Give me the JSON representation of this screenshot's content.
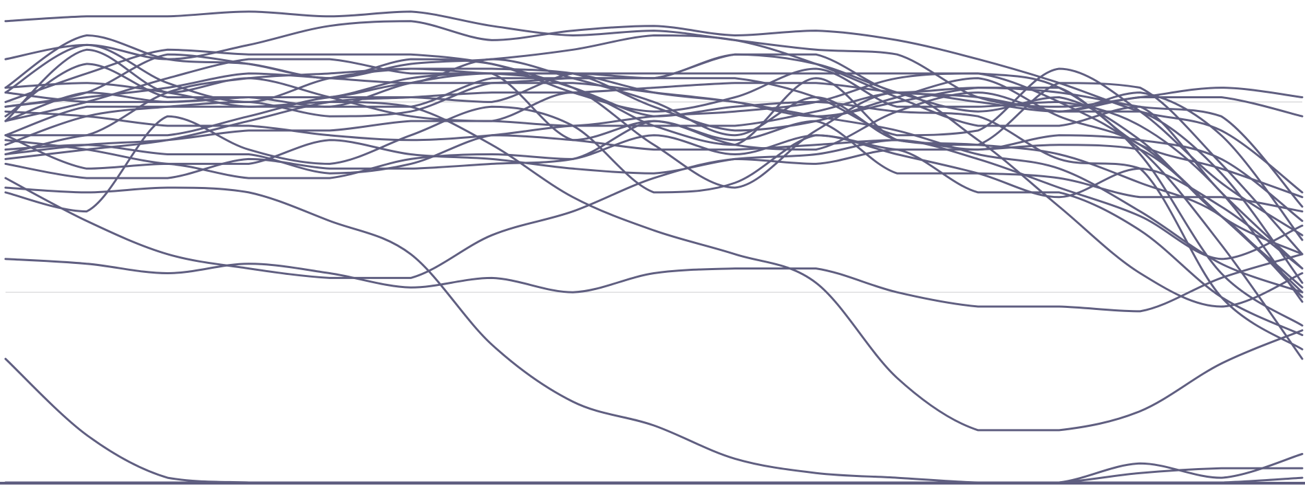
{
  "chart_data": {
    "type": "line",
    "title": "",
    "xlabel": "",
    "ylabel": "",
    "grid": true,
    "legend": "none",
    "xlim": [
      0,
      16
    ],
    "ylim": [
      0,
      100
    ],
    "gridlines_y": [
      40,
      80
    ],
    "colors": {
      "line": "#5f5e80",
      "grid": "#d4d4d6",
      "baseline": "#5f5e80",
      "background": "#ffffff"
    },
    "x": [
      0,
      1,
      2,
      3,
      4,
      5,
      6,
      7,
      8,
      9,
      10,
      11,
      12,
      13,
      14,
      15,
      16
    ],
    "series": [
      {
        "values": [
          73,
          66,
          67,
          64,
          64,
          68,
          69,
          68,
          76,
          72,
          76,
          65,
          65,
          64,
          60,
          60,
          57
        ]
      },
      {
        "values": [
          61,
          57,
          77,
          70,
          67,
          73,
          79,
          75,
          61,
          63,
          73,
          69,
          65,
          60,
          66,
          58,
          45
        ]
      },
      {
        "values": [
          77,
          88,
          81,
          81,
          79,
          84,
          86,
          72,
          76,
          71,
          70,
          78,
          82,
          78,
          82,
          73,
          51
        ]
      },
      {
        "values": [
          83,
          94,
          89,
          88,
          85,
          89,
          88,
          82,
          78,
          81,
          87,
          79,
          79,
          80,
          75,
          61,
          38
        ]
      },
      {
        "values": [
          73,
          73,
          82,
          85,
          86,
          87,
          86,
          86,
          86,
          86,
          86,
          86,
          86,
          83,
          69,
          44,
          33
        ]
      },
      {
        "values": [
          76,
          80,
          85,
          89,
          89,
          86,
          86,
          86,
          79,
          74,
          76,
          81,
          85,
          77,
          71,
          56,
          41
        ]
      },
      {
        "values": [
          76,
          82,
          80,
          81,
          81,
          85,
          86,
          83,
          71,
          62,
          74,
          82,
          72,
          58,
          44,
          37,
          44
        ]
      },
      {
        "values": [
          79,
          82,
          90,
          88,
          85,
          88,
          89,
          91,
          94,
          93,
          88,
          81,
          75,
          75,
          79,
          61,
          45
        ]
      },
      {
        "values": [
          82,
          80,
          80,
          81,
          81,
          84,
          84,
          85,
          85,
          85,
          81,
          73,
          74,
          87,
          78,
          63,
          52
        ]
      },
      {
        "values": [
          67,
          64,
          64,
          68,
          66,
          66,
          67,
          68,
          73,
          69,
          73,
          70,
          70,
          71,
          70,
          56,
          40
        ]
      },
      {
        "values": [
          71,
          77,
          79,
          80,
          77,
          78,
          84,
          84,
          82,
          80,
          77,
          80,
          83,
          83,
          71,
          66,
          60
        ]
      },
      {
        "values": [
          70,
          71,
          69,
          69,
          65,
          67,
          73,
          72,
          70,
          70,
          71,
          72,
          70,
          73,
          72,
          68,
          55
        ]
      },
      {
        "values": [
          76,
          91,
          82,
          85,
          81,
          77,
          76,
          82,
          75,
          71,
          85,
          72,
          71,
          84,
          83,
          67,
          48
        ]
      },
      {
        "values": [
          62,
          61,
          62,
          61,
          55,
          48,
          29,
          17,
          12,
          5,
          2,
          1,
          0,
          0,
          2,
          3,
          3
        ]
      },
      {
        "values": [
          69,
          73,
          73,
          77,
          81,
          81,
          80,
          86,
          85,
          90,
          88,
          82,
          78,
          81,
          72,
          56,
          48
        ]
      },
      {
        "values": [
          68,
          70,
          72,
          76,
          80,
          81,
          82,
          82,
          83,
          84,
          84,
          82,
          81,
          78,
          78,
          65,
          42
        ]
      },
      {
        "values": [
          72,
          70,
          67,
          67,
          72,
          69,
          68,
          66,
          65,
          68,
          69,
          72,
          68,
          62,
          56,
          47,
          54
        ]
      },
      {
        "values": [
          82,
          92,
          84,
          80,
          85,
          87,
          87,
          86,
          82,
          80,
          77,
          74,
          69,
          66,
          57,
          46,
          40
        ]
      },
      {
        "values": [
          89,
          92,
          89,
          92,
          96,
          97,
          93,
          95,
          96,
          94,
          95,
          93,
          89,
          84,
          78,
          74,
          61
        ]
      },
      {
        "values": [
          83,
          84,
          82,
          79,
          80,
          79,
          71,
          60,
          53,
          48,
          42,
          22,
          11,
          11,
          15,
          25,
          32
        ]
      },
      {
        "values": [
          78,
          77,
          75,
          75,
          73,
          72,
          73,
          75,
          75,
          75,
          78,
          82,
          80,
          78,
          81,
          81,
          77
        ]
      },
      {
        "values": [
          47,
          46,
          44,
          46,
          44,
          41,
          43,
          40,
          44,
          45,
          45,
          40,
          37,
          37,
          36,
          43,
          48
        ]
      },
      {
        "values": [
          97,
          98,
          98,
          99,
          98,
          99,
          96,
          94,
          95,
          93,
          91,
          90,
          81,
          79,
          81,
          83,
          81
        ]
      },
      {
        "values": [
          64,
          55,
          48,
          45,
          43,
          43,
          52,
          57,
          64,
          68,
          67,
          70,
          61,
          61,
          53,
          39,
          31
        ]
      },
      {
        "values": [
          73,
          79,
          79,
          79,
          79,
          79,
          85,
          85,
          85,
          90,
          90,
          82,
          83,
          82,
          79,
          77,
          58
        ]
      },
      {
        "values": [
          80,
          86,
          91,
          90,
          90,
          90,
          88,
          83,
          77,
          79,
          80,
          78,
          77,
          68,
          66,
          39,
          28
        ]
      },
      {
        "values": [
          79,
          81,
          83,
          86,
          85,
          84,
          89,
          85,
          80,
          73,
          81,
          72,
          71,
          69,
          63,
          56,
          39
        ]
      },
      {
        "values": [
          69,
          71,
          72,
          74,
          74,
          76,
          76,
          75,
          77,
          78,
          80,
          85,
          86,
          80,
          70,
          50,
          26
        ]
      },
      {
        "values": [
          0,
          0,
          0,
          0,
          0,
          0,
          0,
          0,
          0,
          0,
          0,
          0,
          0,
          0,
          0,
          0,
          1
        ]
      },
      {
        "values": [
          26,
          10,
          1,
          0,
          0,
          0,
          0,
          0,
          0,
          0,
          0,
          0,
          0,
          0,
          4,
          1,
          6
        ]
      }
    ]
  }
}
